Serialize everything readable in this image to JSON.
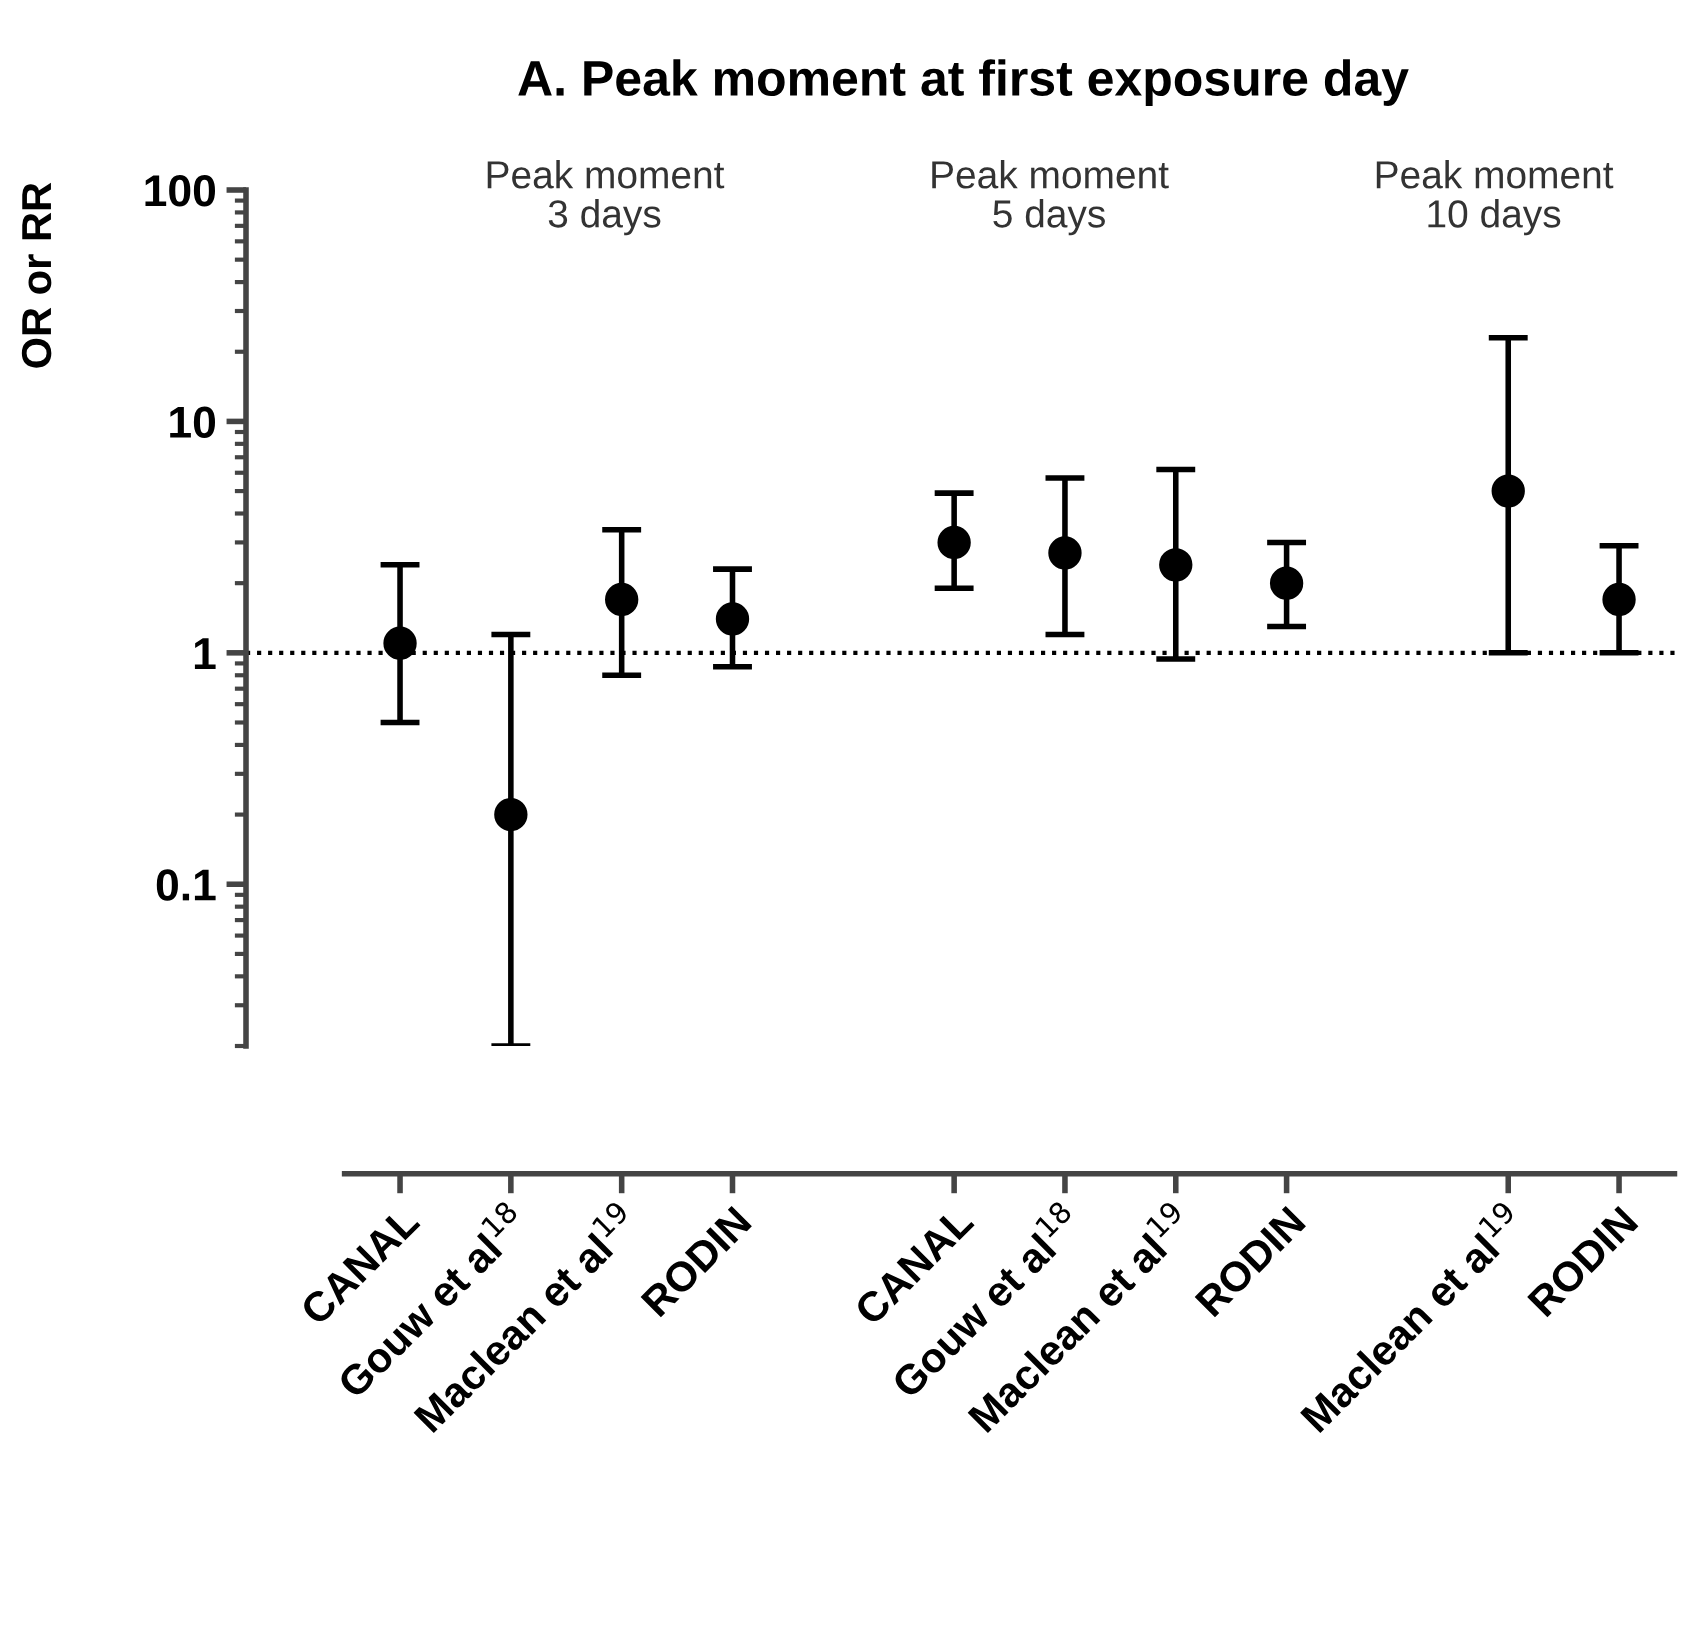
{
  "chart_data": {
    "type": "scatter",
    "title": "A. Peak moment at first exposure day",
    "ylabel": "OR or RR",
    "categories": [
      "CANAL",
      "Gouw et al$^{18}$",
      "Maclean et al$^{19}$",
      "RODIN",
      null,
      "CANAL",
      "Gouw et al$^{18}$",
      "Maclean et al$^{19}$",
      "RODIN",
      null,
      "Maclean et al$^{19}$",
      "RODIN"
    ],
    "series": [
      {
        "color": "#000000",
        "values": [
          1.1,
          0.2,
          1.7,
          1.4,
          null,
          3.0,
          2.7,
          2.4,
          2.0,
          null,
          5.0,
          1.7
        ],
        "errors": [
          [
            0.5,
            2.4
          ],
          [
            0.02,
            1.2
          ],
          [
            0.8,
            3.4
          ],
          [
            0.87,
            2.3
          ],
          null,
          [
            1.9,
            4.9
          ],
          [
            1.2,
            5.7
          ],
          [
            0.94,
            6.2
          ],
          [
            1.3,
            3.0
          ],
          null,
          [
            1.0,
            23
          ],
          [
            1.0,
            2.9
          ]
        ]
      }
    ],
    "annotations": [
      "Peak moment\n3 days",
      "Peak moment\n5 days",
      "Peak moment\n10 days"
    ],
    "log": "y",
    "ylim": [
      0.02,
      100
    ],
    "yticks": [
      0.1,
      1,
      10,
      100
    ],
    "ref_lines": [
      {
        "axis": "y",
        "value": 1,
        "color": "#000000",
        "line_style": "dotted"
      }
    ],
    "marker": "circle",
    "grid": false,
    "legend": false
  }
}
